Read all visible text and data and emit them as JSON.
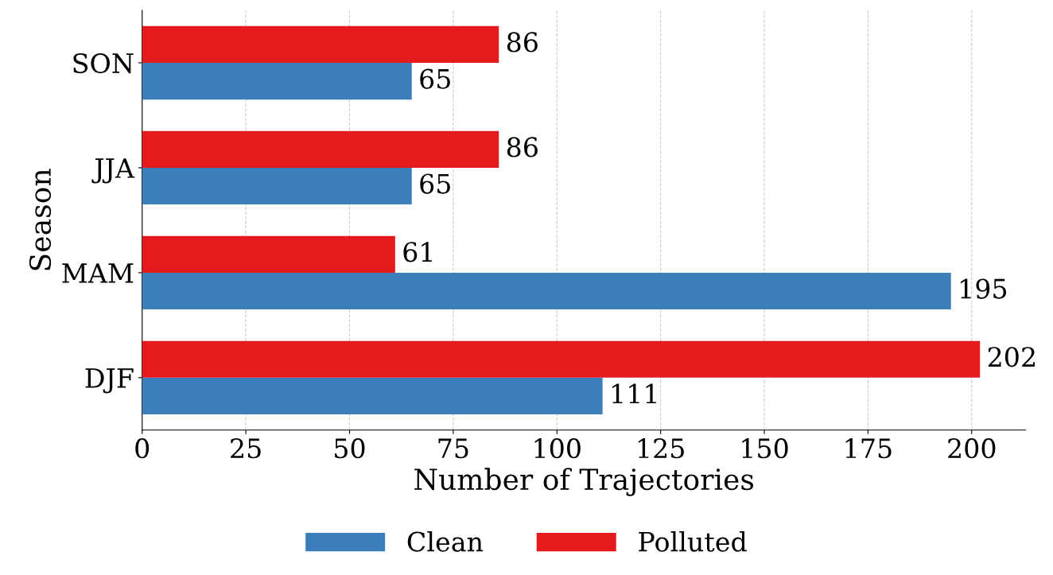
{
  "chart_data": {
    "type": "bar",
    "orientation": "horizontal",
    "xlabel": "Number of Trajectories",
    "ylabel": "Season",
    "categories": [
      "SON",
      "JJA",
      "MAM",
      "DJF"
    ],
    "series": [
      {
        "name": "Clean",
        "color": "#3a7fba",
        "values": [
          65,
          65,
          195,
          111
        ]
      },
      {
        "name": "Polluted",
        "color": "#e41a1c",
        "values": [
          86,
          86,
          61,
          202
        ]
      }
    ],
    "xlim": [
      0,
      213
    ],
    "xticks": [
      0,
      25,
      50,
      75,
      100,
      125,
      150,
      175,
      200
    ],
    "grid": "x",
    "legend": "bottom",
    "data_labels": true
  }
}
